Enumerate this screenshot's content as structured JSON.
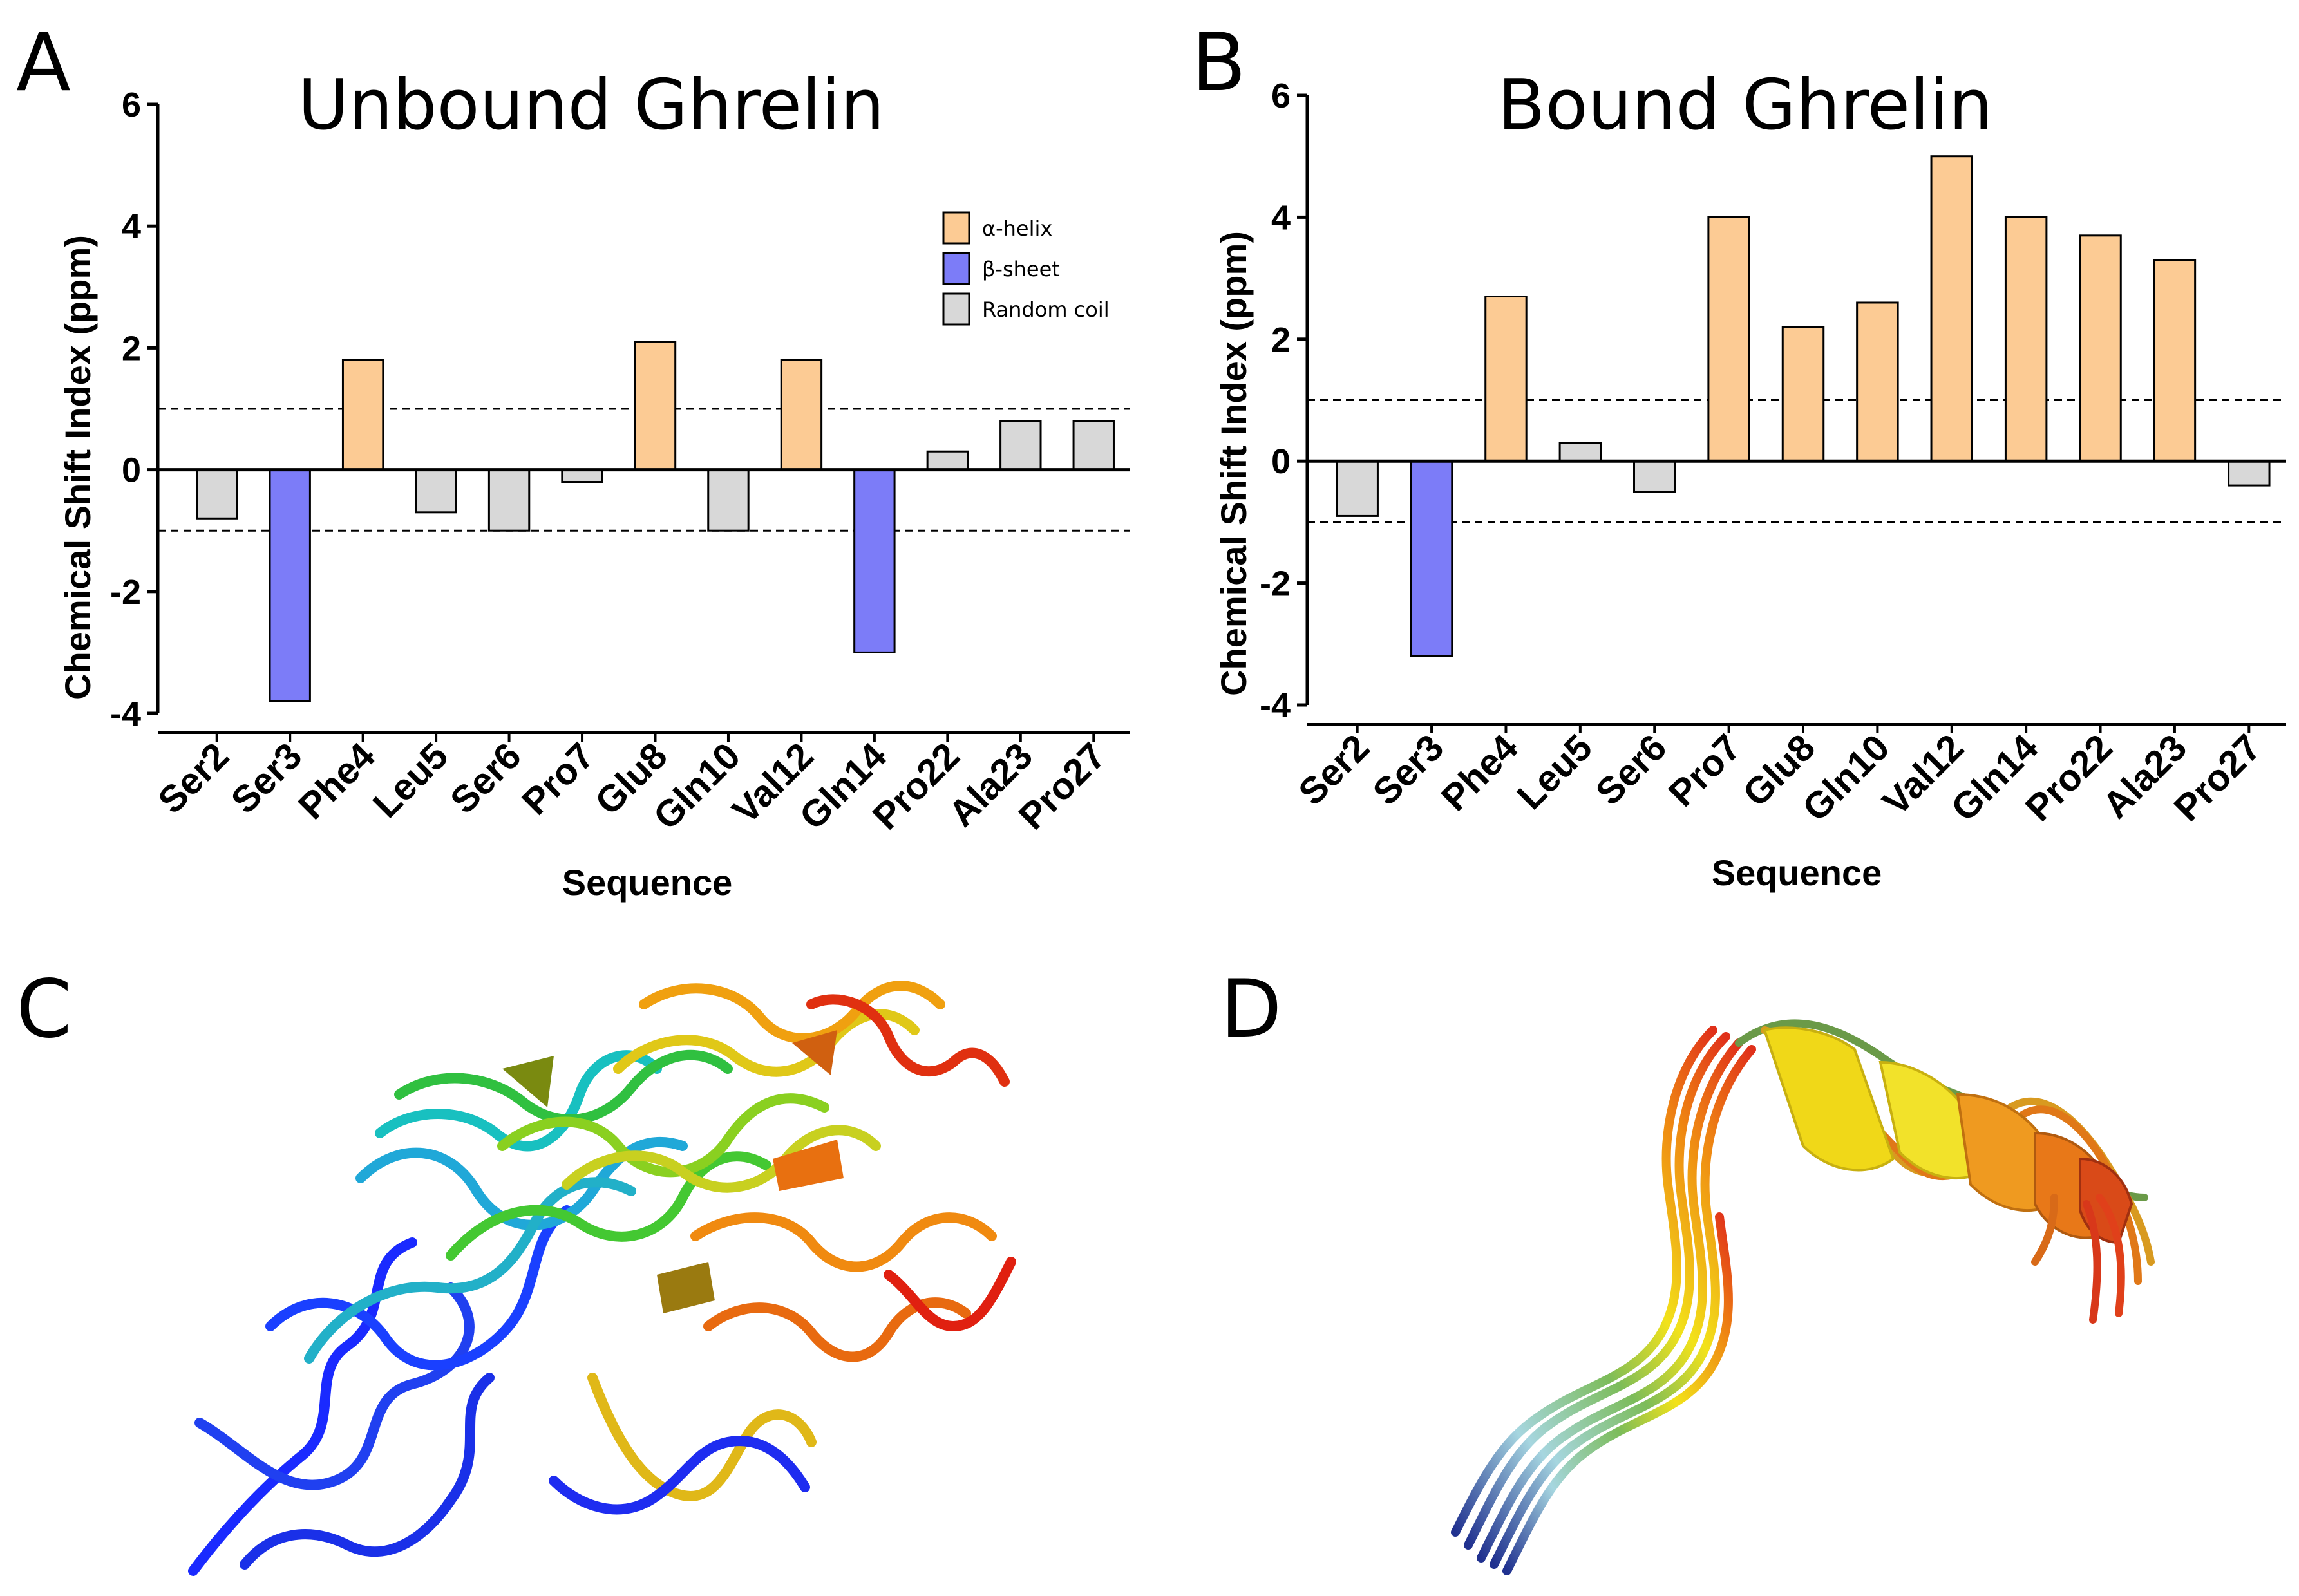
{
  "panels": {
    "a": "A",
    "b": "B",
    "c": "C",
    "d": "D"
  },
  "colors": {
    "helix": "#FCCB94",
    "sheet": "#7C7CF8",
    "coil": "#D8D8D8",
    "axis": "#000000"
  },
  "legend": {
    "items": [
      {
        "key": "helix",
        "label": "α-helix"
      },
      {
        "key": "sheet",
        "label": "β-sheet"
      },
      {
        "key": "coil",
        "label": "Random coil"
      }
    ]
  },
  "chart_data": [
    {
      "type": "bar",
      "title": "Unbound Ghrelin",
      "xlabel": "Sequence",
      "ylabel": "Chemical Shift Index (ppm)",
      "ylim": [
        -4,
        6
      ],
      "yticks": [
        -4,
        -2,
        0,
        2,
        4,
        6
      ],
      "thresholds": [
        1,
        -1
      ],
      "categories": [
        "Ser2",
        "Ser3",
        "Phe4",
        "Leu5",
        "Ser6",
        "Pro7",
        "Glu8",
        "Gln10",
        "Val12",
        "Gln14",
        "Pro22",
        "Ala23",
        "Pro27"
      ],
      "values": [
        -0.8,
        -3.8,
        1.8,
        -0.7,
        -1.0,
        -0.2,
        2.1,
        -1.0,
        1.8,
        -3.0,
        0.3,
        0.8,
        0.8
      ],
      "structure": [
        "coil",
        "sheet",
        "helix",
        "coil",
        "coil",
        "coil",
        "helix",
        "coil",
        "helix",
        "sheet",
        "coil",
        "coil",
        "coil"
      ],
      "legend": "top-right"
    },
    {
      "type": "bar",
      "title": "Bound Ghrelin",
      "xlabel": "Sequence",
      "ylabel": "Chemical Shift Index (ppm)",
      "ylim": [
        -4,
        6
      ],
      "yticks": [
        -4,
        -2,
        0,
        2,
        4,
        6
      ],
      "thresholds": [
        1,
        -1
      ],
      "categories": [
        "Ser2",
        "Ser3",
        "Phe4",
        "Leu5",
        "Ser6",
        "Pro7",
        "Glu8",
        "Gln10",
        "Val12",
        "Gln14",
        "Pro22",
        "Ala23",
        "Pro27"
      ],
      "values": [
        -0.9,
        -3.2,
        2.7,
        0.3,
        -0.5,
        4.0,
        2.2,
        2.6,
        5.0,
        4.0,
        3.7,
        3.3,
        -0.4
      ],
      "structure": [
        "coil",
        "sheet",
        "helix",
        "coil",
        "coil",
        "helix",
        "helix",
        "helix",
        "helix",
        "helix",
        "helix",
        "helix",
        "coil"
      ],
      "legend": "none"
    }
  ]
}
